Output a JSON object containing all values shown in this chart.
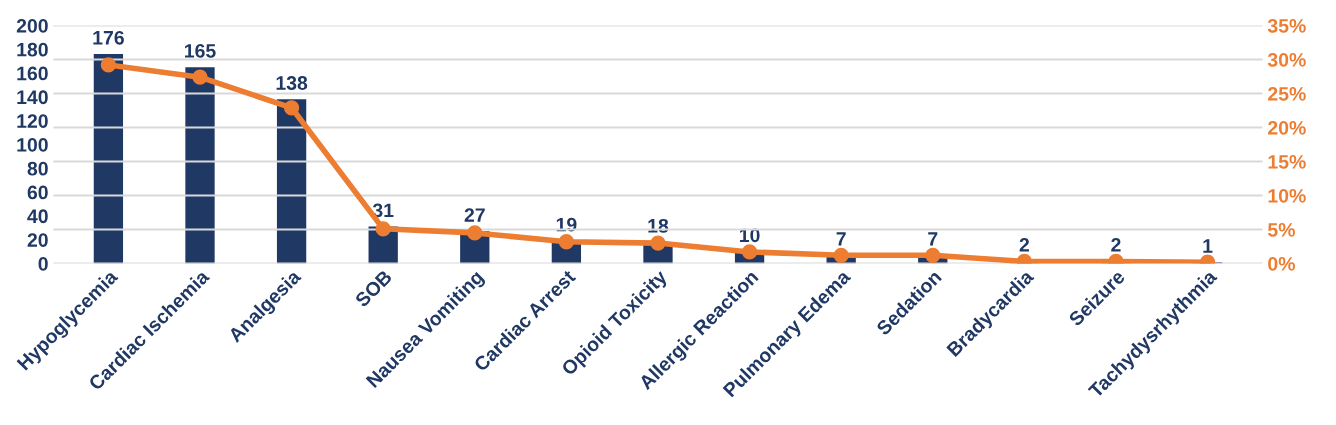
{
  "chart_data": {
    "type": "bar",
    "categories": [
      "Hypoglycemia",
      "Cardiac Ischemia",
      "Analgesia",
      "SOB",
      "Nausea Vomiting",
      "Cardiac Arrest",
      "Opioid Toxicity",
      "Allergic Reaction",
      "Pulmonary Edema",
      "Sedation",
      "Bradycardia",
      "Seizure",
      "Tachydysrhythmia"
    ],
    "series": [
      {
        "color": "#203864",
        "values": [
          176,
          165,
          138,
          31,
          27,
          19,
          18,
          10,
          7,
          7,
          2,
          2,
          1
        ],
        "data_labels": true
      },
      {
        "type": "line",
        "axis": "y2",
        "color": "#ed7d31",
        "marker": "circle",
        "values": [
          29.2,
          27.4,
          22.9,
          5.1,
          4.5,
          3.2,
          3.0,
          1.7,
          1.2,
          1.2,
          0.3,
          0.3,
          0.2
        ]
      }
    ],
    "ylim": [
      0,
      200
    ],
    "yticks": [
      0,
      20,
      40,
      60,
      80,
      100,
      120,
      140,
      160,
      180,
      200
    ],
    "y2lim": [
      0,
      35
    ],
    "y2ticks": [
      {
        "value": 0,
        "label": "0%"
      },
      {
        "value": 5,
        "label": "5%"
      },
      {
        "value": 10,
        "label": "10%"
      },
      {
        "value": 15,
        "label": "15%"
      },
      {
        "value": 20,
        "label": "20%"
      },
      {
        "value": 25,
        "label": "25%"
      },
      {
        "value": 30,
        "label": "30%"
      },
      {
        "value": 35,
        "label": "35%"
      }
    ],
    "grid": "y2",
    "legend": false
  }
}
